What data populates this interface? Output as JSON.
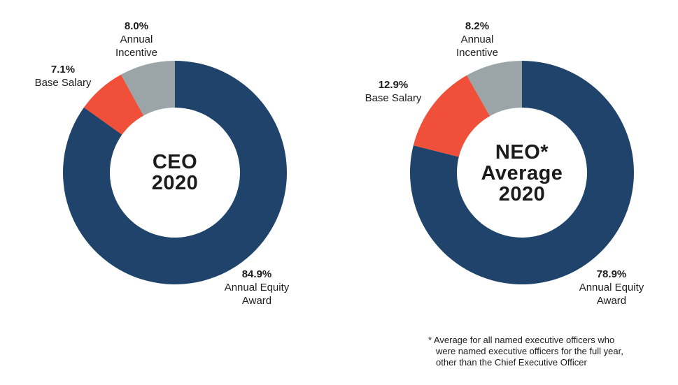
{
  "chart_data": [
    {
      "type": "pie",
      "subtype": "donut",
      "title": "CEO 2020",
      "center_lines": [
        "CEO",
        "2020"
      ],
      "labels": [
        "Annual Equity Award",
        "Base Salary",
        "Annual Incentive"
      ],
      "values": [
        84.9,
        7.1,
        8.0
      ],
      "value_labels": [
        "84.9%",
        "7.1%",
        "8.0%"
      ],
      "label_lines": [
        [
          "Annual Equity",
          "Award"
        ],
        [
          "Base Salary"
        ],
        [
          "Annual",
          "Incentive"
        ]
      ],
      "colors": [
        "#1F436B",
        "#F0503A",
        "#9BA4A7"
      ],
      "units": "%",
      "start_angle_deg": 0,
      "direction": "clockwise",
      "legend": "none"
    },
    {
      "type": "pie",
      "subtype": "donut",
      "title": "NEO* Average 2020",
      "center_lines": [
        "NEO*",
        "Average",
        "2020"
      ],
      "labels": [
        "Annual Equity Award",
        "Base Salary",
        "Annual Incentive"
      ],
      "values": [
        78.9,
        12.9,
        8.2
      ],
      "value_labels": [
        "78.9%",
        "12.9%",
        "8.2%"
      ],
      "label_lines": [
        [
          "Annual Equity",
          "Award"
        ],
        [
          "Base Salary"
        ],
        [
          "Annual",
          "Incentive"
        ]
      ],
      "colors": [
        "#1F436B",
        "#F0503A",
        "#9BA4A7"
      ],
      "units": "%",
      "start_angle_deg": 0,
      "direction": "clockwise",
      "legend": "none"
    }
  ],
  "footnote": {
    "lines": [
      "* Average for all named executive officers who",
      "were named executive officers for the full year,",
      "other than the Chief Executive Officer"
    ]
  },
  "colors": {
    "annual_equity_award": "#1F436B",
    "base_salary": "#F0503A",
    "annual_incentive": "#9BA4A7",
    "text": "#1B1B1B",
    "background": "#FFFFFF"
  }
}
